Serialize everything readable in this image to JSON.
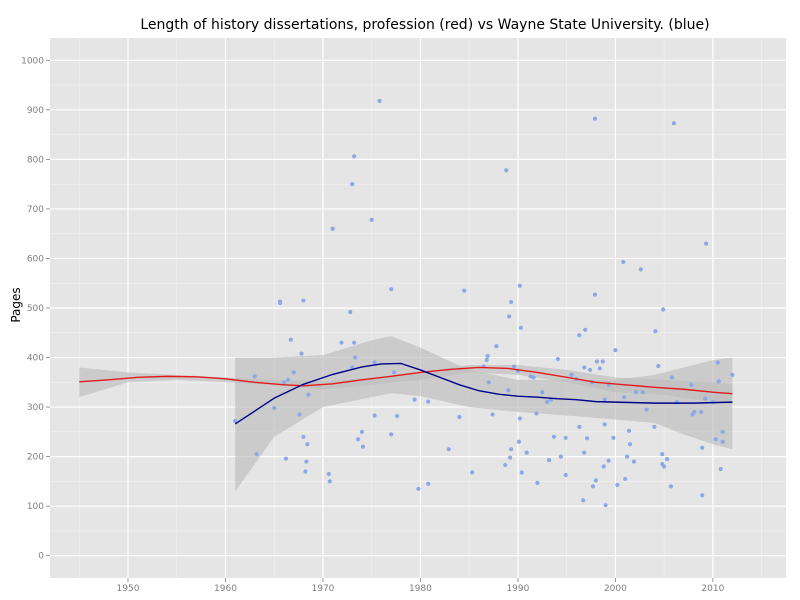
{
  "chart_data": {
    "type": "scatter",
    "title": "Length of history dissertations, profession (red) vs Wayne State University. (blue)",
    "xlabel": "",
    "ylabel": "Pages",
    "xlim": [
      1942,
      2017.5
    ],
    "ylim": [
      -45,
      1045
    ],
    "x_ticks": [
      1950,
      1960,
      1970,
      1980,
      1990,
      2000,
      2010
    ],
    "y_ticks": [
      0,
      100,
      200,
      300,
      400,
      500,
      600,
      700,
      800,
      900,
      1000
    ],
    "grid": true,
    "colors": {
      "panel": "#e5e5e5",
      "grid_major": "#ffffff",
      "grid_minor": "#f2f2f2",
      "points": "#8ca8e6",
      "profession_line": "#e41a1c",
      "wsu_line": "#00008b",
      "band": "#bdbdbd"
    },
    "series": [
      {
        "kind": "points",
        "points": [
          [
            1961,
            272
          ],
          [
            1963,
            362
          ],
          [
            1963.2,
            205
          ],
          [
            1965,
            298
          ],
          [
            1965.6,
            513
          ],
          [
            1965.6,
            510
          ],
          [
            1966,
            350
          ],
          [
            1966.2,
            196
          ],
          [
            1966.4,
            355
          ],
          [
            1966.7,
            436
          ],
          [
            1967,
            370
          ],
          [
            1967.6,
            285
          ],
          [
            1967.8,
            408
          ],
          [
            1968,
            515
          ],
          [
            1968,
            240
          ],
          [
            1968.2,
            170
          ],
          [
            1968.3,
            190
          ],
          [
            1968.4,
            225
          ],
          [
            1968.5,
            325
          ],
          [
            1970.6,
            165
          ],
          [
            1970.7,
            150
          ],
          [
            1971,
            660
          ],
          [
            1971.9,
            430
          ],
          [
            1972.8,
            492
          ],
          [
            1973,
            750
          ],
          [
            1973,
            380
          ],
          [
            1973.2,
            806
          ],
          [
            1973.2,
            430
          ],
          [
            1973.3,
            400
          ],
          [
            1973.6,
            235
          ],
          [
            1974,
            250
          ],
          [
            1974.1,
            220
          ],
          [
            1975,
            678
          ],
          [
            1975.3,
            390
          ],
          [
            1975.3,
            283
          ],
          [
            1975.8,
            918
          ],
          [
            1977,
            538
          ],
          [
            1977,
            245
          ],
          [
            1977.3,
            370
          ],
          [
            1977.6,
            282
          ],
          [
            1979.4,
            315
          ],
          [
            1979.8,
            135
          ],
          [
            1980.8,
            145
          ],
          [
            1980.8,
            311
          ],
          [
            1982.9,
            215
          ],
          [
            1984,
            280
          ],
          [
            1984.5,
            535
          ],
          [
            1985.3,
            168
          ],
          [
            1986.5,
            382
          ],
          [
            1986.8,
            395
          ],
          [
            1986.9,
            403
          ],
          [
            1987,
            350
          ],
          [
            1987.4,
            285
          ],
          [
            1987.8,
            423
          ],
          [
            1988.7,
            183
          ],
          [
            1988.8,
            778
          ],
          [
            1989,
            334
          ],
          [
            1989.1,
            483
          ],
          [
            1989.2,
            198
          ],
          [
            1989.3,
            512
          ],
          [
            1989.3,
            215
          ],
          [
            1989.6,
            382
          ],
          [
            1990,
            373
          ],
          [
            1990.1,
            230
          ],
          [
            1990.2,
            545
          ],
          [
            1990.2,
            277
          ],
          [
            1990.3,
            460
          ],
          [
            1990.4,
            168
          ],
          [
            1990.9,
            208
          ],
          [
            1991.3,
            362
          ],
          [
            1991.6,
            360
          ],
          [
            1991.9,
            287
          ],
          [
            1992,
            147
          ],
          [
            1992.5,
            330
          ],
          [
            1993,
            310
          ],
          [
            1993.2,
            193
          ],
          [
            1993.4,
            315
          ],
          [
            1993.7,
            240
          ],
          [
            1994.1,
            397
          ],
          [
            1994.4,
            200
          ],
          [
            1994.9,
            238
          ],
          [
            1994.9,
            163
          ],
          [
            1995.5,
            365
          ],
          [
            1996,
            357
          ],
          [
            1996.3,
            445
          ],
          [
            1996.3,
            260
          ],
          [
            1996.7,
            112
          ],
          [
            1996.8,
            380
          ],
          [
            1996.8,
            208
          ],
          [
            1996.9,
            456
          ],
          [
            1997.1,
            237
          ],
          [
            1997.4,
            375
          ],
          [
            1997.6,
            350
          ],
          [
            1997.7,
            140
          ],
          [
            1997.9,
            527
          ],
          [
            1997.9,
            882
          ],
          [
            1998,
            152
          ],
          [
            1998.1,
            392
          ],
          [
            1998.4,
            378
          ],
          [
            1998.7,
            392
          ],
          [
            1998.8,
            180
          ],
          [
            1998.9,
            315
          ],
          [
            1998.9,
            265
          ],
          [
            1999,
            102
          ],
          [
            1999.3,
            345
          ],
          [
            1999.3,
            192
          ],
          [
            1999.8,
            238
          ],
          [
            2000,
            415
          ],
          [
            2000.2,
            143
          ],
          [
            2000.8,
            593
          ],
          [
            2000.9,
            320
          ],
          [
            2001,
            155
          ],
          [
            2001.2,
            200
          ],
          [
            2001.4,
            252
          ],
          [
            2001.5,
            225
          ],
          [
            2001.9,
            190
          ],
          [
            2002.1,
            330
          ],
          [
            2002.6,
            578
          ],
          [
            2002.8,
            330
          ],
          [
            2003.2,
            295
          ],
          [
            2004,
            260
          ],
          [
            2004.1,
            453
          ],
          [
            2004.4,
            383
          ],
          [
            2004.8,
            205
          ],
          [
            2004.8,
            185
          ],
          [
            2004.9,
            497
          ],
          [
            2005,
            180
          ],
          [
            2005.3,
            195
          ],
          [
            2005.7,
            140
          ],
          [
            2005.8,
            360
          ],
          [
            2006,
            873
          ],
          [
            2006.3,
            310
          ],
          [
            2007.8,
            345
          ],
          [
            2007.9,
            285
          ],
          [
            2008.1,
            290
          ],
          [
            2008.8,
            290
          ],
          [
            2008.9,
            218
          ],
          [
            2008.9,
            122
          ],
          [
            2009.2,
            317
          ],
          [
            2009.3,
            630
          ],
          [
            2010,
            310
          ],
          [
            2010.3,
            235
          ],
          [
            2010.5,
            390
          ],
          [
            2010.6,
            352
          ],
          [
            2010.8,
            175
          ],
          [
            2011,
            250
          ],
          [
            2011,
            230
          ],
          [
            2012,
            365
          ]
        ]
      },
      {
        "kind": "band",
        "upper": [
          [
            1945,
            380
          ],
          [
            1950,
            370
          ],
          [
            1955,
            365
          ],
          [
            1960,
            360
          ],
          [
            1965,
            355
          ],
          [
            1970,
            352
          ],
          [
            1975,
            360
          ],
          [
            1980,
            370
          ],
          [
            1985,
            385
          ],
          [
            1990,
            385
          ],
          [
            1995,
            375
          ],
          [
            2000,
            360
          ],
          [
            2005,
            355
          ],
          [
            2010,
            350
          ],
          [
            2012,
            345
          ]
        ],
        "lower": [
          [
            1945,
            320
          ],
          [
            1950,
            350
          ],
          [
            1955,
            355
          ],
          [
            1960,
            350
          ],
          [
            1965,
            345
          ],
          [
            1970,
            335
          ],
          [
            1975,
            345
          ],
          [
            1980,
            355
          ],
          [
            1985,
            370
          ],
          [
            1990,
            365
          ],
          [
            1995,
            350
          ],
          [
            2000,
            330
          ],
          [
            2005,
            325
          ],
          [
            2010,
            310
          ],
          [
            2012,
            305
          ]
        ]
      },
      {
        "kind": "band",
        "upper": [
          [
            1961,
            400
          ],
          [
            1965,
            400
          ],
          [
            1970,
            405
          ],
          [
            1975,
            435
          ],
          [
            1977,
            443
          ],
          [
            1980,
            420
          ],
          [
            1985,
            375
          ],
          [
            1990,
            355
          ],
          [
            1995,
            355
          ],
          [
            2000,
            355
          ],
          [
            2004,
            365
          ],
          [
            2007,
            380
          ],
          [
            2010,
            395
          ],
          [
            2012,
            400
          ]
        ],
        "lower": [
          [
            1961,
            130
          ],
          [
            1965,
            240
          ],
          [
            1970,
            300
          ],
          [
            1975,
            320
          ],
          [
            1977,
            328
          ],
          [
            1980,
            322
          ],
          [
            1985,
            300
          ],
          [
            1990,
            290
          ],
          [
            1995,
            283
          ],
          [
            2000,
            275
          ],
          [
            2004,
            268
          ],
          [
            2007,
            245
          ],
          [
            2010,
            225
          ],
          [
            2012,
            215
          ]
        ]
      },
      {
        "kind": "line",
        "points": [
          [
            1945,
            351
          ],
          [
            1948,
            355
          ],
          [
            1951,
            360
          ],
          [
            1954,
            362
          ],
          [
            1957,
            361
          ],
          [
            1960,
            357
          ],
          [
            1963,
            350
          ],
          [
            1966,
            345
          ],
          [
            1968,
            343
          ],
          [
            1971,
            347
          ],
          [
            1974,
            355
          ],
          [
            1977,
            362
          ],
          [
            1980,
            370
          ],
          [
            1983,
            376
          ],
          [
            1986,
            380
          ],
          [
            1989,
            378
          ],
          [
            1992,
            370
          ],
          [
            1995,
            360
          ],
          [
            1998,
            350
          ],
          [
            2001,
            345
          ],
          [
            2004,
            340
          ],
          [
            2007,
            336
          ],
          [
            2010,
            330
          ],
          [
            2012,
            327
          ]
        ]
      },
      {
        "kind": "line",
        "points": [
          [
            1961,
            266
          ],
          [
            1963,
            292
          ],
          [
            1965,
            318
          ],
          [
            1968,
            346
          ],
          [
            1971,
            366
          ],
          [
            1974,
            381
          ],
          [
            1976,
            387
          ],
          [
            1978,
            388
          ],
          [
            1980,
            375
          ],
          [
            1982,
            360
          ],
          [
            1984,
            345
          ],
          [
            1986,
            333
          ],
          [
            1988,
            326
          ],
          [
            1990,
            322
          ],
          [
            1992,
            320
          ],
          [
            1994,
            317
          ],
          [
            1996,
            315
          ],
          [
            1998,
            311
          ],
          [
            2000,
            310
          ],
          [
            2002,
            309
          ],
          [
            2004,
            308
          ],
          [
            2006,
            308
          ],
          [
            2008,
            308
          ],
          [
            2010,
            309
          ],
          [
            2012,
            310
          ]
        ]
      }
    ]
  }
}
